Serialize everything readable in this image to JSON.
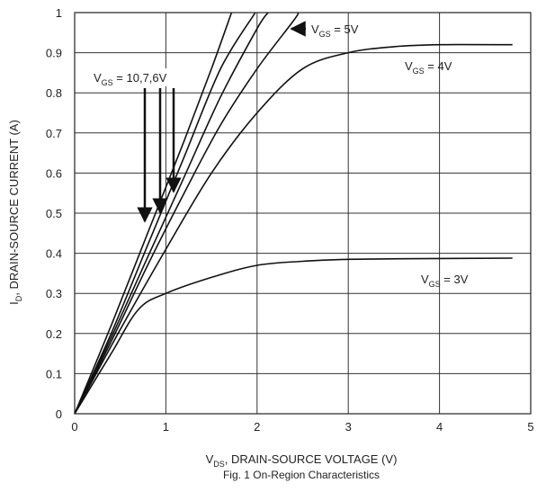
{
  "chart_data": {
    "type": "line",
    "xlabel_main": "V",
    "xlabel_sub": "DS",
    "xlabel_rest": ", DRAIN-SOURCE VOLTAGE (V)",
    "ylabel_main": "I",
    "ylabel_sub": "D",
    "ylabel_rest": ", DRAIN-SOURCE CURRENT (A)",
    "caption": "Fig. 1  On-Region Characteristics",
    "xlim": [
      0,
      5
    ],
    "ylim": [
      0,
      1
    ],
    "x_ticks": [
      "0",
      "1",
      "2",
      "3",
      "4",
      "5"
    ],
    "y_ticks": [
      "0",
      "0.1",
      "0.2",
      "0.3",
      "0.4",
      "0.5",
      "0.6",
      "0.7",
      "0.8",
      "0.9",
      "1"
    ],
    "grid": true,
    "series": [
      {
        "name": "VGS = 10V",
        "points": [
          [
            0,
            0
          ],
          [
            0.4,
            0.22
          ],
          [
            0.8,
            0.45
          ],
          [
            1.2,
            0.68
          ],
          [
            1.5,
            0.86
          ],
          [
            1.72,
            1.0
          ]
        ]
      },
      {
        "name": "VGS = 7V",
        "points": [
          [
            0,
            0
          ],
          [
            0.4,
            0.2
          ],
          [
            0.8,
            0.42
          ],
          [
            1.2,
            0.64
          ],
          [
            1.6,
            0.86
          ],
          [
            1.98,
            1.0
          ]
        ]
      },
      {
        "name": "VGS = 6V",
        "points": [
          [
            0,
            0
          ],
          [
            0.4,
            0.19
          ],
          [
            0.8,
            0.39
          ],
          [
            1.2,
            0.59
          ],
          [
            1.6,
            0.79
          ],
          [
            2.0,
            0.96
          ],
          [
            2.12,
            1.0
          ]
        ]
      },
      {
        "name": "VGS = 5V",
        "points": [
          [
            0,
            0
          ],
          [
            0.4,
            0.18
          ],
          [
            0.8,
            0.37
          ],
          [
            1.2,
            0.55
          ],
          [
            1.6,
            0.72
          ],
          [
            2.0,
            0.86
          ],
          [
            2.4,
            0.98
          ],
          [
            2.45,
            1.0
          ]
        ]
      },
      {
        "name": "VGS = 4V",
        "points": [
          [
            0,
            0
          ],
          [
            0.5,
            0.21
          ],
          [
            1.0,
            0.41
          ],
          [
            1.5,
            0.6
          ],
          [
            2.0,
            0.75
          ],
          [
            2.5,
            0.86
          ],
          [
            3.0,
            0.9
          ],
          [
            3.5,
            0.915
          ],
          [
            4.0,
            0.92
          ],
          [
            4.8,
            0.92
          ]
        ]
      },
      {
        "name": "VGS = 3V",
        "points": [
          [
            0,
            0
          ],
          [
            0.4,
            0.15
          ],
          [
            0.7,
            0.26
          ],
          [
            1.0,
            0.3
          ],
          [
            1.5,
            0.34
          ],
          [
            2.0,
            0.37
          ],
          [
            2.5,
            0.38
          ],
          [
            3.0,
            0.385
          ],
          [
            4.0,
            0.387
          ],
          [
            4.8,
            0.388
          ]
        ]
      }
    ],
    "annotations": [
      {
        "name": "vgs-5v",
        "v": "V",
        "sub": "GS",
        "rest": " = 5V"
      },
      {
        "name": "vgs-4v",
        "v": "V",
        "sub": "GS",
        "rest": " = 4V"
      },
      {
        "name": "vgs-3v",
        "v": "V",
        "sub": "GS",
        "rest": " = 3V"
      },
      {
        "name": "vgs-10-7-6v",
        "v": "V",
        "sub": "GS",
        "rest": " = 10,7,6V"
      }
    ]
  }
}
